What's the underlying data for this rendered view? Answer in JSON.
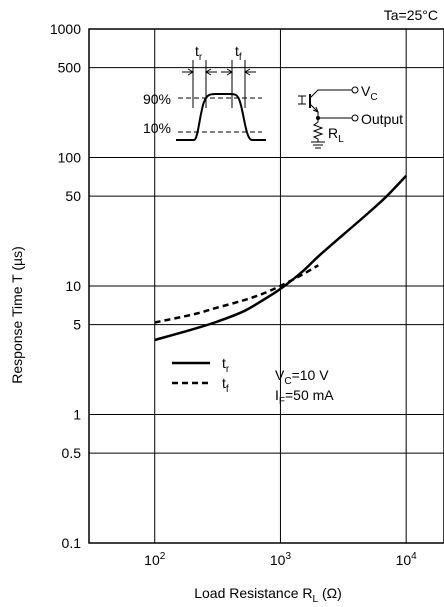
{
  "chart_data": {
    "type": "line",
    "title": "",
    "condition_label": "Ta=25°C",
    "xlabel": {
      "main": "Load Resistance R",
      "sub": "L",
      "unit": " (Ω)"
    },
    "ylabel": "Response Time T (µs)",
    "x_scale": "log",
    "y_scale": "log",
    "xlim": [
      30,
      20000
    ],
    "ylim": [
      0.1,
      1000
    ],
    "grid": true,
    "x_ticks": [
      {
        "value": 100,
        "base": "10",
        "exp": "2"
      },
      {
        "value": 1000,
        "base": "10",
        "exp": "3"
      },
      {
        "value": 10000,
        "base": "10",
        "exp": "4"
      }
    ],
    "y_ticks": [
      {
        "value": 0.1,
        "label": "0.1"
      },
      {
        "value": 0.5,
        "label": "0.5"
      },
      {
        "value": 1,
        "label": "1"
      },
      {
        "value": 5,
        "label": "5"
      },
      {
        "value": 10,
        "label": "10"
      },
      {
        "value": 50,
        "label": "50"
      },
      {
        "value": 100,
        "label": "100"
      },
      {
        "value": 500,
        "label": "500"
      },
      {
        "value": 1000,
        "label": "1000"
      }
    ],
    "series": [
      {
        "name": "tr",
        "label_base": "t",
        "label_sub": "r",
        "style": "solid",
        "x": [
          100,
          200,
          300,
          500,
          700,
          1000,
          1500,
          2000,
          3000,
          5000,
          7000,
          10000
        ],
        "y": [
          3.8,
          4.6,
          5.2,
          6.3,
          7.6,
          9.5,
          13,
          17,
          24,
          37,
          50,
          72
        ]
      },
      {
        "name": "tf",
        "label_base": "t",
        "label_sub": "f",
        "style": "dashed",
        "x": [
          100,
          200,
          300,
          500,
          700,
          1000,
          1500,
          2000
        ],
        "y": [
          5.2,
          6.0,
          6.7,
          7.7,
          8.6,
          10.0,
          12.3,
          14.5
        ]
      }
    ],
    "conditions": {
      "vc": {
        "base": "V",
        "sub": "C",
        "rest": "=10 V"
      },
      "if": {
        "base": "I",
        "sub": "F",
        "rest": "=50 mA"
      }
    },
    "inset": {
      "tr_base": "t",
      "tr_sub": "r",
      "tf_base": "t",
      "tf_sub": "f",
      "pct90": "90%",
      "pct10": "10%",
      "vc_base": "V",
      "vc_sub": "C",
      "output": "Output",
      "rl_base": "R",
      "rl_sub": "L"
    }
  }
}
